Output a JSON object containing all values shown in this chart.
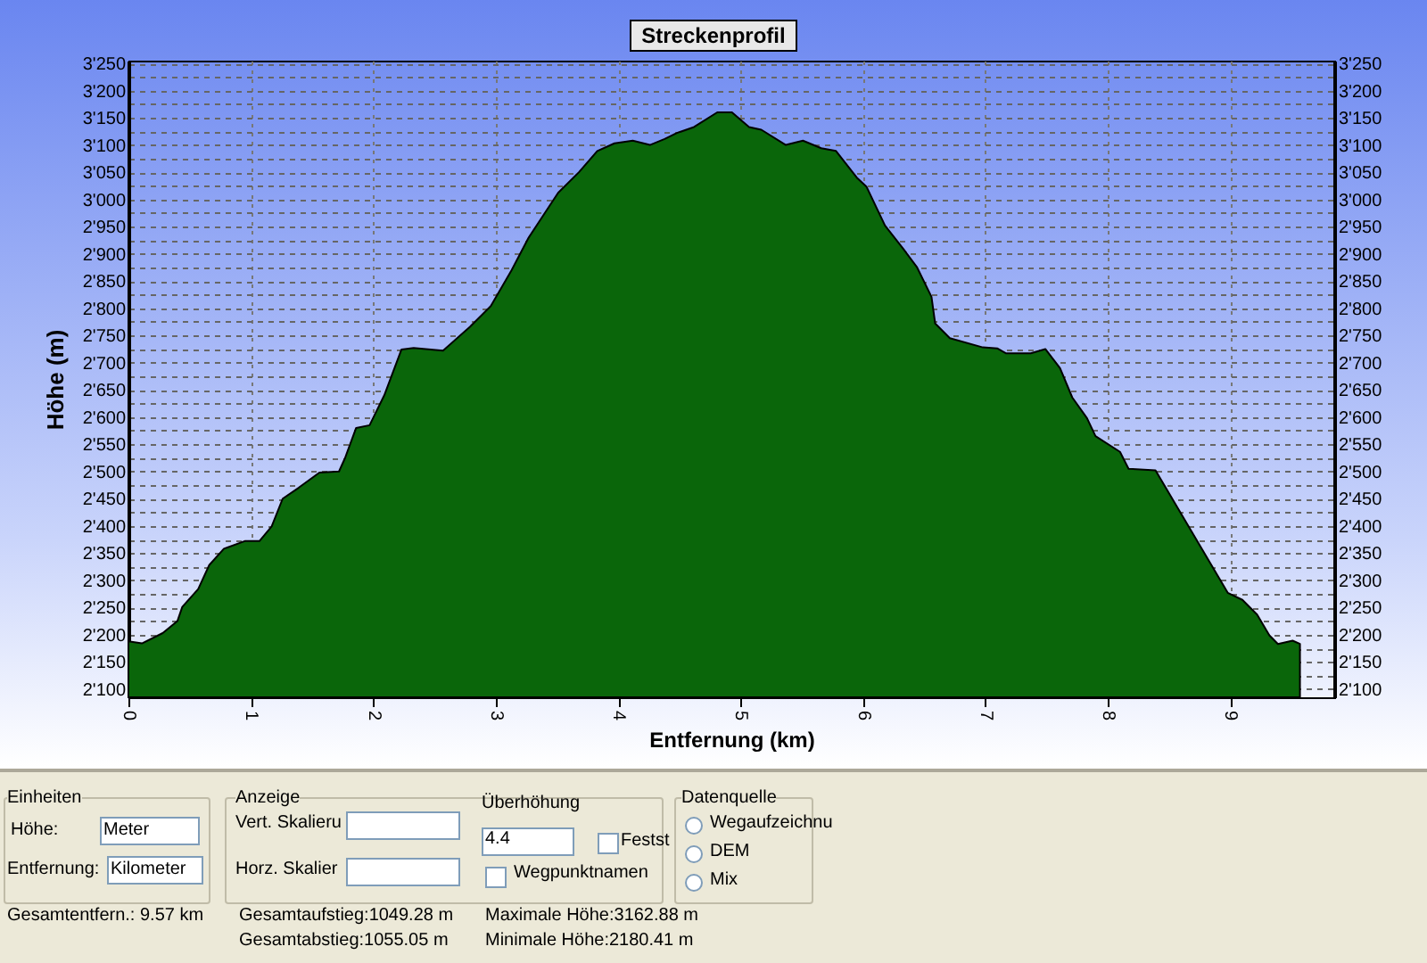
{
  "chart_data": {
    "type": "area",
    "title": "Streckenprofil",
    "xlabel": "Entfernung (km)",
    "ylabel": "Höhe (m)",
    "x": [
      0,
      0.11,
      0.28,
      0.4,
      0.44,
      0.57,
      0.66,
      0.78,
      0.95,
      1.07,
      1.17,
      1.26,
      1.39,
      1.56,
      1.72,
      1.77,
      1.86,
      1.97,
      2.09,
      2.23,
      2.33,
      2.57,
      2.79,
      2.96,
      3.13,
      3.27,
      3.51,
      3.68,
      3.83,
      3.97,
      4.12,
      4.26,
      4.38,
      4.48,
      4.62,
      4.81,
      4.93,
      5.07,
      5.17,
      5.37,
      5.51,
      5.66,
      5.78,
      5.95,
      6.03,
      6.18,
      6.33,
      6.44,
      6.56,
      6.59,
      6.71,
      6.98,
      7.1,
      7.17,
      7.37,
      7.49,
      7.61,
      7.71,
      7.83,
      7.9,
      8.1,
      8.17,
      8.39,
      8.98,
      9.1,
      9.22,
      9.32,
      9.39,
      9.51,
      9.57
    ],
    "series": [
      {
        "color": "#0a660a",
        "values": [
          2188,
          2184,
          2203,
          2225,
          2251,
          2284,
          2328,
          2358,
          2372,
          2372,
          2399,
          2450,
          2470,
          2498,
          2500,
          2525,
          2580,
          2585,
          2640,
          2724,
          2727,
          2722,
          2766,
          2804,
          2870,
          2930,
          3012,
          3050,
          3089,
          3103,
          3108,
          3100,
          3111,
          3122,
          3133,
          3160,
          3160,
          3133,
          3128,
          3100,
          3108,
          3094,
          3089,
          3040,
          3023,
          2952,
          2909,
          2876,
          2821,
          2772,
          2745,
          2728,
          2726,
          2717,
          2717,
          2725,
          2690,
          2636,
          2598,
          2565,
          2536,
          2505,
          2502,
          2277,
          2264,
          2237,
          2199,
          2183,
          2189,
          2183
        ]
      }
    ],
    "xlim": [
      0,
      9.85
    ],
    "xticks": [
      0,
      1,
      2,
      3,
      4,
      5,
      6,
      7,
      8,
      9
    ],
    "ylim": [
      2085,
      3255
    ],
    "yticks": [
      {
        "value": 2100,
        "label": "2'100"
      },
      {
        "value": 2125,
        "label": null
      },
      {
        "value": 2150,
        "label": "2'150"
      },
      {
        "value": 2175,
        "label": null
      },
      {
        "value": 2200,
        "label": "2'200"
      },
      {
        "value": 2225,
        "label": null
      },
      {
        "value": 2250,
        "label": "2'250"
      },
      {
        "value": 2275,
        "label": null
      },
      {
        "value": 2300,
        "label": "2'300"
      },
      {
        "value": 2325,
        "label": null
      },
      {
        "value": 2350,
        "label": "2'350"
      },
      {
        "value": 2375,
        "label": null
      },
      {
        "value": 2400,
        "label": "2'400"
      },
      {
        "value": 2425,
        "label": null
      },
      {
        "value": 2450,
        "label": "2'450"
      },
      {
        "value": 2475,
        "label": null
      },
      {
        "value": 2500,
        "label": "2'500"
      },
      {
        "value": 2525,
        "label": null
      },
      {
        "value": 2550,
        "label": "2'550"
      },
      {
        "value": 2575,
        "label": null
      },
      {
        "value": 2600,
        "label": "2'600"
      },
      {
        "value": 2625,
        "label": null
      },
      {
        "value": 2650,
        "label": "2'650"
      },
      {
        "value": 2675,
        "label": null
      },
      {
        "value": 2700,
        "label": "2'700"
      },
      {
        "value": 2725,
        "label": null
      },
      {
        "value": 2750,
        "label": "2'750"
      },
      {
        "value": 2775,
        "label": null
      },
      {
        "value": 2800,
        "label": "2'800"
      },
      {
        "value": 2825,
        "label": null
      },
      {
        "value": 2850,
        "label": "2'850"
      },
      {
        "value": 2875,
        "label": null
      },
      {
        "value": 2900,
        "label": "2'900"
      },
      {
        "value": 2925,
        "label": null
      },
      {
        "value": 2950,
        "label": "2'950"
      },
      {
        "value": 2975,
        "label": null
      },
      {
        "value": 3000,
        "label": "3'000"
      },
      {
        "value": 3025,
        "label": null
      },
      {
        "value": 3050,
        "label": "3'050"
      },
      {
        "value": 3075,
        "label": null
      },
      {
        "value": 3100,
        "label": "3'100"
      },
      {
        "value": 3125,
        "label": null
      },
      {
        "value": 3150,
        "label": "3'150"
      },
      {
        "value": 3175,
        "label": null
      },
      {
        "value": 3200,
        "label": "3'200"
      },
      {
        "value": 3225,
        "label": null
      },
      {
        "value": 3250,
        "label": "3'250"
      }
    ],
    "y2lim": [
      2085,
      3255
    ],
    "y2ticks": [
      {
        "value": 2100,
        "label": "2'100"
      },
      {
        "value": 2150,
        "label": "2'150"
      },
      {
        "value": 2200,
        "label": "2'200"
      },
      {
        "value": 2250,
        "label": "2'250"
      },
      {
        "value": 2300,
        "label": "2'300"
      },
      {
        "value": 2350,
        "label": "2'350"
      },
      {
        "value": 2400,
        "label": "2'400"
      },
      {
        "value": 2450,
        "label": "2'450"
      },
      {
        "value": 2500,
        "label": "2'500"
      },
      {
        "value": 2550,
        "label": "2'550"
      },
      {
        "value": 2600,
        "label": "2'600"
      },
      {
        "value": 2650,
        "label": "2'650"
      },
      {
        "value": 2700,
        "label": "2'700"
      },
      {
        "value": 2750,
        "label": "2'750"
      },
      {
        "value": 2800,
        "label": "2'800"
      },
      {
        "value": 2850,
        "label": "2'850"
      },
      {
        "value": 2900,
        "label": "2'900"
      },
      {
        "value": 2950,
        "label": "2'950"
      },
      {
        "value": 3000,
        "label": "3'000"
      },
      {
        "value": 3050,
        "label": "3'050"
      },
      {
        "value": 3100,
        "label": "3'100"
      },
      {
        "value": 3150,
        "label": "3'150"
      },
      {
        "value": 3200,
        "label": "3'200"
      },
      {
        "value": 3250,
        "label": "3'250"
      }
    ],
    "grid": true,
    "annotations": [
      "Einheiten",
      "Höhe:",
      "Meter",
      "Entfernung:",
      "Kilometer",
      "Anzeige",
      "Vert. Skalieru",
      "Horz. Skalier",
      "Überhöhung",
      "4.4",
      "Festst",
      "Wegpunktnamen",
      "Datenquelle",
      "Wegaufzeichnu",
      "DEM",
      "Mix",
      "Gesamtentfern.:  9.57 km",
      "Gesamtaufstieg:1049.28 m",
      "Gesamtabstieg:1055.05 m",
      "Maximale Höhe:3162.88 m",
      "Minimale Höhe:2180.41 m"
    ]
  }
}
